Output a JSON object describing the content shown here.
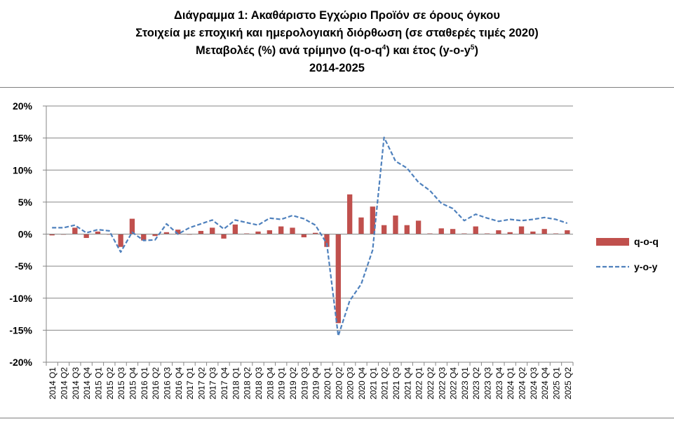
{
  "title": {
    "line1": "Διάγραμμα 1: Ακαθάριστο Εγχώριο Προϊόν σε όρους όγκου",
    "line2": "Στοιχεία με εποχική και ημερολογιακή διόρθωση (σε σταθερές τιμές 2020)",
    "line3a": "Μεταβολές (%) ανά τρίμηνο (q-o-q",
    "line3sup1": "4",
    "line3b": ") και έτος (y-o-y",
    "line3sup2": "5",
    "line3c": ")",
    "line4": "2014-2025"
  },
  "chart_data": {
    "type": "bar",
    "ylim": [
      -20,
      20
    ],
    "yticks": [
      -20,
      -15,
      -10,
      -5,
      0,
      5,
      10,
      15,
      20
    ],
    "ytick_labels": [
      "-20%",
      "-15%",
      "-10%",
      "-5%",
      "0%",
      "5%",
      "10%",
      "15%",
      "20%"
    ],
    "grid": true,
    "legend_position": "right",
    "categories": [
      "2014 Q1",
      "2014 Q2",
      "2014 Q3",
      "2014 Q4",
      "2015 Q1",
      "2015 Q2",
      "2015 Q3",
      "2015 Q4",
      "2016 Q1",
      "2016 Q2",
      "2016 Q3",
      "2016 Q4",
      "2017 Q1",
      "2017 Q2",
      "2017 Q3",
      "2017 Q4",
      "2018 Q1",
      "2018 Q2",
      "2018 Q3",
      "2018 Q4",
      "2019 Q1",
      "2019 Q2",
      "2019 Q3",
      "2019 Q4",
      "2020 Q1",
      "2020 Q2",
      "2020 Q3",
      "2020 Q4",
      "2021 Q1",
      "2021 Q2",
      "2021 Q3",
      "2021 Q4",
      "2022 Q1",
      "2022 Q2",
      "2022 Q3",
      "2022 Q4",
      "2023 Q1",
      "2023 Q2",
      "2023 Q3",
      "2023 Q4",
      "2024 Q1",
      "2024 Q2",
      "2024 Q3",
      "2024 Q4",
      "2025 Q1",
      "2025 Q2"
    ],
    "series": [
      {
        "name": "q-o-q",
        "kind": "bar",
        "color": "#c0504d",
        "values": [
          -0.2,
          0.0,
          1.0,
          -0.6,
          0.4,
          0.0,
          -2.0,
          2.4,
          -1.0,
          -0.3,
          0.3,
          0.7,
          0.0,
          0.5,
          1.0,
          -0.7,
          1.5,
          0.1,
          0.4,
          0.6,
          1.2,
          1.0,
          -0.5,
          0.2,
          -2.0,
          -13.9,
          6.2,
          2.6,
          4.3,
          1.4,
          2.9,
          1.4,
          2.1,
          0.1,
          0.9,
          0.8,
          0.1,
          1.2,
          0.1,
          0.6,
          0.3,
          1.2,
          0.4,
          0.8,
          0.1,
          0.6
        ]
      },
      {
        "name": "y-o-y",
        "kind": "line",
        "dash": "dashed",
        "color": "#4f81bd",
        "values": [
          1.0,
          1.0,
          1.4,
          0.2,
          0.7,
          0.5,
          -2.8,
          0.3,
          -1.0,
          -0.9,
          1.6,
          0.0,
          1.0,
          1.6,
          2.2,
          0.8,
          2.2,
          1.8,
          1.4,
          2.5,
          2.3,
          2.9,
          2.4,
          1.4,
          -1.5,
          -15.9,
          -10.4,
          -7.8,
          -2.5,
          15.1,
          11.4,
          10.3,
          8.1,
          6.8,
          4.8,
          4.0,
          2.1,
          3.1,
          2.5,
          2.0,
          2.3,
          2.1,
          2.3,
          2.6,
          2.3,
          1.7
        ]
      }
    ]
  }
}
